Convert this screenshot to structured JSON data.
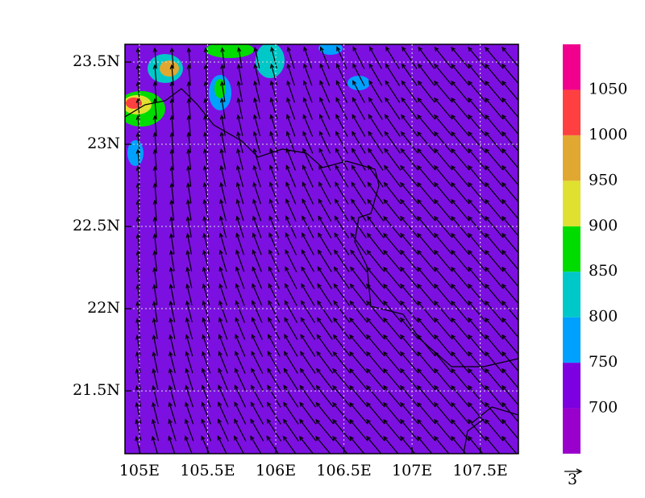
{
  "chart_data": {
    "type": "contour",
    "xlim": [
      104.894,
      107.78
    ],
    "ylim": [
      21.118,
      23.608
    ],
    "xticks": [
      {
        "value": 105,
        "label": "105E"
      },
      {
        "value": 105.5,
        "label": "105.5E"
      },
      {
        "value": 106,
        "label": "106E"
      },
      {
        "value": 106.5,
        "label": "106.5E"
      },
      {
        "value": 107,
        "label": "107E"
      },
      {
        "value": 107.5,
        "label": "107.5E"
      }
    ],
    "yticks": [
      {
        "value": 21.5,
        "label": "21.5N"
      },
      {
        "value": 22,
        "label": "22N"
      },
      {
        "value": 22.5,
        "label": "22.5N"
      },
      {
        "value": 23,
        "label": "23N"
      },
      {
        "value": 23.5,
        "label": "23.5N"
      }
    ],
    "grid": true,
    "colorbar": {
      "clim": [
        650,
        1100
      ],
      "levels": [
        700,
        750,
        800,
        850,
        900,
        950,
        1000,
        1050
      ],
      "colors": [
        "#9a00cc",
        "#7c00e0",
        "#00a0ff",
        "#00c8c8",
        "#00dc00",
        "#e0e030",
        "#e0a830",
        "#ff4040",
        "#f0008c"
      ]
    },
    "reference_vector": 3
  }
}
